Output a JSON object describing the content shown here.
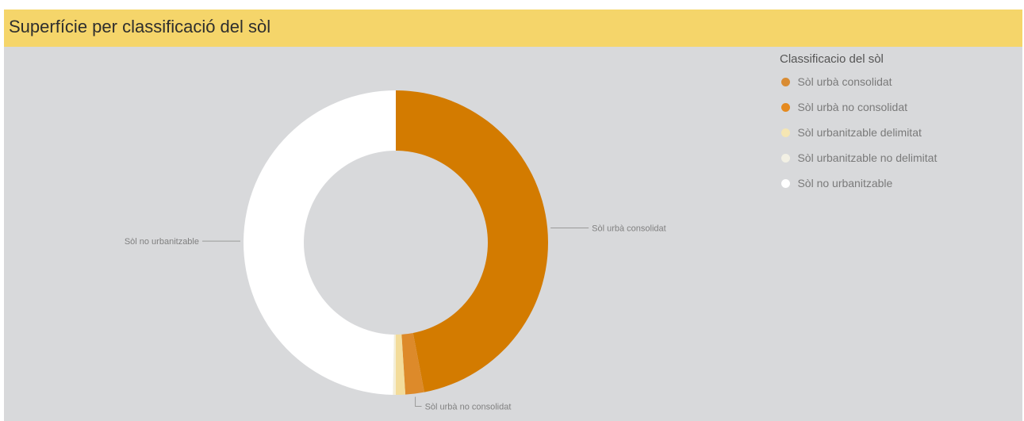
{
  "header": {
    "title": "Superfície per classificació del sòl"
  },
  "legend": {
    "title": "Classificacio del sòl",
    "placement": "right",
    "items": [
      {
        "label": "Sòl urbà consolidat",
        "color": "#d98c33"
      },
      {
        "label": "Sòl urbà no consolidat",
        "color": "#e58a1f"
      },
      {
        "label": "Sòl urbanitzable delimitat",
        "color": "#f5e6b3"
      },
      {
        "label": "Sòl urbanitzable no delimitat",
        "color": "#f2f0e4"
      },
      {
        "label": "Sòl no urbanitzable",
        "color": "#ffffff"
      }
    ]
  },
  "chart_data": {
    "type": "pie",
    "variant": "donut",
    "title": "Superfície per classificació del sòl",
    "categories": [
      "Sòl urbà consolidat",
      "Sòl urbà no consolidat",
      "Sòl urbanitzable delimitat",
      "Sòl urbanitzable no delimitat",
      "Sòl no urbanitzable"
    ],
    "values": [
      47.0,
      2.0,
      1.0,
      0.3,
      49.7
    ],
    "unit": "%",
    "colors": [
      "#d37b00",
      "#dd8a2a",
      "#f3dc9a",
      "#f4efd8",
      "#ffffff"
    ],
    "data_labels": [
      {
        "category": "Sòl urbà consolidat",
        "text": "Sòl urbà consolidat"
      },
      {
        "category": "Sòl urbà no consolidat",
        "text": "Sòl urbà no consolidat"
      },
      {
        "category": "Sòl no urbanitzable",
        "text": "Sòl no urbanitzable"
      }
    ]
  }
}
